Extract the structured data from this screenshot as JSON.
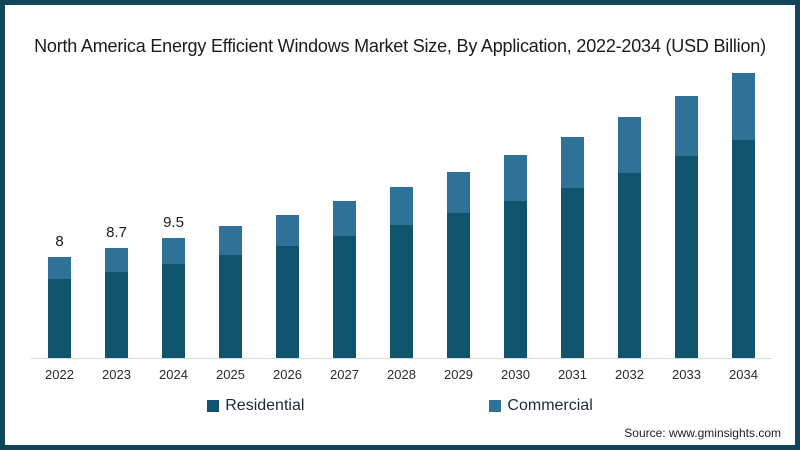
{
  "title": "North America Energy Efficient Windows Market Size, By Application, 2022-2034 (USD Billion)",
  "source": "Source: www.gminsights.com",
  "legend": {
    "items": [
      {
        "label": "Residential",
        "color": "#0F536C"
      },
      {
        "label": "Commercial",
        "color": "#2F7197"
      }
    ]
  },
  "colors": {
    "frame_border": "#11455A",
    "residential": "#0F536C",
    "commercial": "#2F7197",
    "axis_line": "#d9d9d9"
  },
  "chart_data": {
    "type": "bar",
    "stacked": true,
    "title": "North America Energy Efficient Windows Market Size, By Application, 2022-2034 (USD Billion)",
    "xlabel": "",
    "ylabel": "",
    "categories": [
      "2022",
      "2023",
      "2024",
      "2025",
      "2026",
      "2027",
      "2028",
      "2029",
      "2030",
      "2031",
      "2032",
      "2033",
      "2034"
    ],
    "series": [
      {
        "name": "Residential",
        "color": "#0F536C",
        "values": [
          6.2,
          6.8,
          7.4,
          8.1,
          8.8,
          9.6,
          10.5,
          11.4,
          12.4,
          13.4,
          14.6,
          15.9,
          17.2
        ]
      },
      {
        "name": "Commercial",
        "color": "#2F7197",
        "values": [
          1.8,
          1.9,
          2.1,
          2.3,
          2.5,
          2.8,
          3.0,
          3.3,
          3.6,
          4.0,
          4.4,
          4.8,
          5.3
        ]
      }
    ],
    "totals": [
      8,
      8.7,
      9.5,
      10.4,
      11.3,
      12.4,
      13.5,
      14.7,
      16.0,
      17.4,
      19.0,
      20.7,
      22.5
    ],
    "bar_labels": [
      "8",
      "8.7",
      "9.5",
      "",
      "",
      "",
      "",
      "",
      "",
      "",
      "",
      "",
      ""
    ],
    "ylim": [
      0,
      23.5
    ],
    "grid": false,
    "y_axis_visible": false,
    "legend_position": "bottom"
  }
}
